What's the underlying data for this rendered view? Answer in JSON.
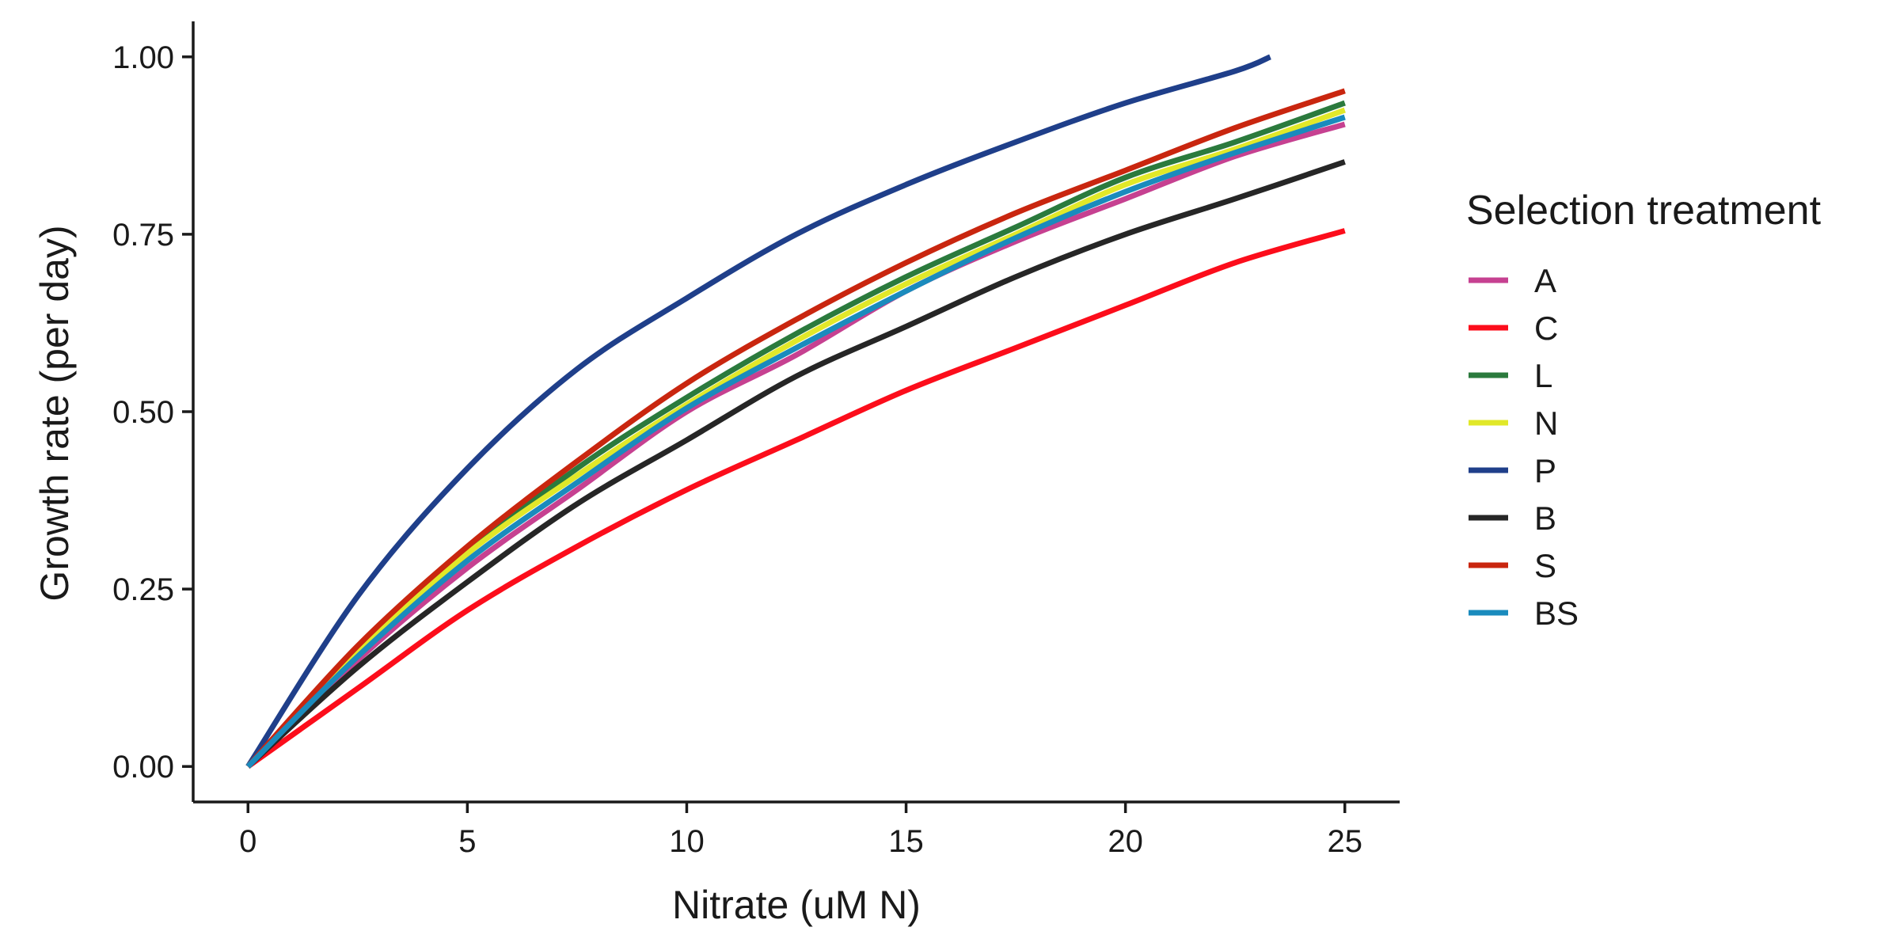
{
  "chart_data": {
    "type": "line",
    "title": "",
    "xlabel": "Nitrate (uM N)",
    "ylabel": "Growth rate (per day)",
    "xlim": [
      -1.25,
      26.25
    ],
    "ylim": [
      -0.05,
      1.05
    ],
    "x_ticks": [
      0,
      5,
      10,
      15,
      20,
      25
    ],
    "x_tick_labels": [
      "0",
      "5",
      "10",
      "15",
      "20",
      "25"
    ],
    "y_ticks": [
      0,
      0.25,
      0.5,
      0.75,
      1.0
    ],
    "y_tick_labels": [
      "0.00",
      "0.25",
      "0.50",
      "0.75",
      "1.00"
    ],
    "grid": false,
    "legend": {
      "title": "Selection treatment",
      "position": "right"
    },
    "series": [
      {
        "name": "A",
        "color": "#c64191",
        "points": [
          [
            0,
            0
          ],
          [
            2.5,
            0.15
          ],
          [
            5,
            0.28
          ],
          [
            7.5,
            0.39
          ],
          [
            10,
            0.5
          ],
          [
            12.5,
            0.58
          ],
          [
            15,
            0.67
          ],
          [
            17.5,
            0.74
          ],
          [
            20,
            0.8
          ],
          [
            22.5,
            0.86
          ],
          [
            25,
            0.905
          ]
        ]
      },
      {
        "name": "C",
        "color": "#fc0d1b",
        "points": [
          [
            0,
            0
          ],
          [
            2.5,
            0.11
          ],
          [
            5,
            0.22
          ],
          [
            7.5,
            0.31
          ],
          [
            10,
            0.39
          ],
          [
            12.5,
            0.46
          ],
          [
            15,
            0.53
          ],
          [
            17.5,
            0.59
          ],
          [
            20,
            0.65
          ],
          [
            22.5,
            0.71
          ],
          [
            25,
            0.755
          ]
        ]
      },
      {
        "name": "L",
        "color": "#2b7a3d",
        "points": [
          [
            0,
            0
          ],
          [
            2.5,
            0.16
          ],
          [
            5,
            0.3
          ],
          [
            7.5,
            0.42
          ],
          [
            10,
            0.52
          ],
          [
            12.5,
            0.61
          ],
          [
            15,
            0.69
          ],
          [
            17.5,
            0.76
          ],
          [
            20,
            0.83
          ],
          [
            22.5,
            0.88
          ],
          [
            25,
            0.935
          ]
        ]
      },
      {
        "name": "N",
        "color": "#e1e829",
        "points": [
          [
            0,
            0
          ],
          [
            2.5,
            0.16
          ],
          [
            5,
            0.3
          ],
          [
            7.5,
            0.41
          ],
          [
            10,
            0.51
          ],
          [
            12.5,
            0.6
          ],
          [
            15,
            0.68
          ],
          [
            17.5,
            0.75
          ],
          [
            20,
            0.82
          ],
          [
            22.5,
            0.87
          ],
          [
            25,
            0.925
          ]
        ]
      },
      {
        "name": "P",
        "color": "#1f3f8a",
        "points": [
          [
            0,
            0
          ],
          [
            2.5,
            0.24
          ],
          [
            5,
            0.42
          ],
          [
            7.5,
            0.56
          ],
          [
            10,
            0.66
          ],
          [
            12.5,
            0.75
          ],
          [
            15,
            0.82
          ],
          [
            17.5,
            0.88
          ],
          [
            20,
            0.935
          ],
          [
            22.5,
            0.98
          ],
          [
            23.3,
            1.0
          ]
        ]
      },
      {
        "name": "B",
        "color": "#262626",
        "points": [
          [
            0,
            0
          ],
          [
            2.5,
            0.14
          ],
          [
            5,
            0.26
          ],
          [
            7.5,
            0.37
          ],
          [
            10,
            0.46
          ],
          [
            12.5,
            0.55
          ],
          [
            15,
            0.62
          ],
          [
            17.5,
            0.69
          ],
          [
            20,
            0.75
          ],
          [
            22.5,
            0.8
          ],
          [
            25,
            0.852
          ]
        ]
      },
      {
        "name": "S",
        "color": "#c9260f",
        "points": [
          [
            0,
            0
          ],
          [
            2.5,
            0.17
          ],
          [
            5,
            0.31
          ],
          [
            7.5,
            0.43
          ],
          [
            10,
            0.54
          ],
          [
            12.5,
            0.63
          ],
          [
            15,
            0.71
          ],
          [
            17.5,
            0.78
          ],
          [
            20,
            0.84
          ],
          [
            22.5,
            0.9
          ],
          [
            25,
            0.952
          ]
        ]
      },
      {
        "name": "BS",
        "color": "#1a8bbd",
        "points": [
          [
            0,
            0
          ],
          [
            2.5,
            0.155
          ],
          [
            5,
            0.29
          ],
          [
            7.5,
            0.4
          ],
          [
            10,
            0.505
          ],
          [
            12.5,
            0.59
          ],
          [
            15,
            0.67
          ],
          [
            17.5,
            0.745
          ],
          [
            20,
            0.81
          ],
          [
            22.5,
            0.865
          ],
          [
            25,
            0.915
          ]
        ]
      }
    ]
  }
}
